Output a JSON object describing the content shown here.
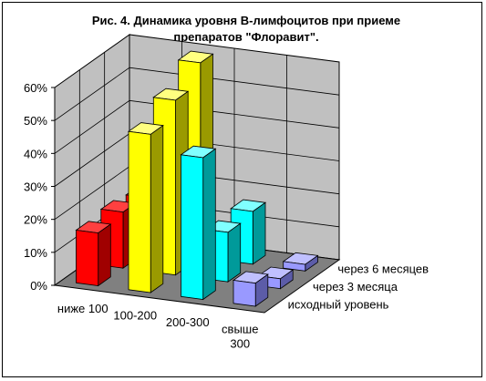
{
  "chart_data": {
    "type": "bar",
    "title": "Рис. 4. Динамика уровня В-лимфоцитов при приеме препаратов \"Флоравит\".",
    "title_lines": [
      "Рис. 4. Динамика уровня В-лимфоцитов при приеме",
      "препаратов \"Флоравит\"."
    ],
    "categories": [
      "ниже 100",
      "100-200",
      "200-300",
      "свыше 300"
    ],
    "category_label_lines": [
      [
        "ниже 100"
      ],
      [
        "100-200"
      ],
      [
        "200-300"
      ],
      [
        "свыше",
        "300"
      ]
    ],
    "yticks": [
      "0%",
      "10%",
      "20%",
      "30%",
      "40%",
      "50%",
      "60%"
    ],
    "ylim": [
      0,
      60
    ],
    "grid": true,
    "series": [
      {
        "name": "исходный уровень",
        "values": [
          16,
          48,
          43,
          7
        ]
      },
      {
        "name": "через 3 месяца",
        "values": [
          17,
          53,
          15,
          3
        ]
      },
      {
        "name": "через 6 месяцев",
        "values": [
          16,
          59,
          16,
          2
        ]
      }
    ],
    "category_colors": [
      {
        "front": "#ff0000",
        "side": "#a00000",
        "top": "#ff4040"
      },
      {
        "front": "#ffff00",
        "side": "#9a9a00",
        "top": "#ffff80"
      },
      {
        "front": "#00ffff",
        "side": "#009a9a",
        "top": "#80ffff"
      },
      {
        "front": "#9999ff",
        "side": "#5c5ca8",
        "top": "#c0c0ff"
      }
    ],
    "wall_color": "#c0c0c0",
    "floor_color": "#808080"
  }
}
